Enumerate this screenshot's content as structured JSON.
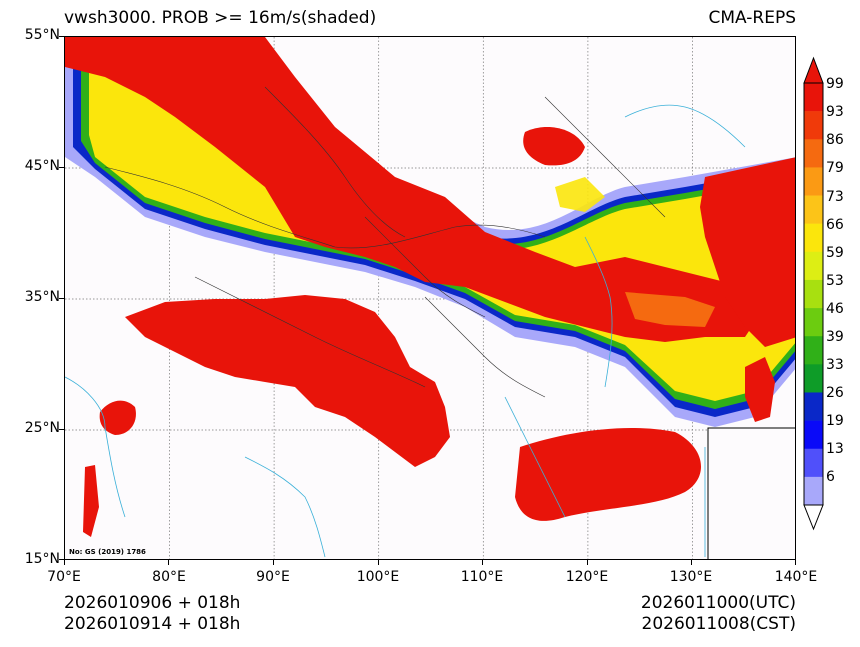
{
  "header": {
    "left_title": "vwsh3000. PROB >= 16m/s(shaded)",
    "right_title": "CMA-REPS"
  },
  "map": {
    "note": "No: GS (2019) 1786",
    "lat_labels": [
      "55°N",
      "45°N",
      "35°N",
      "25°N",
      "15°N"
    ],
    "lon_labels": [
      "70°E",
      "80°E",
      "90°E",
      "100°E",
      "110°E",
      "120°E",
      "130°E",
      "140°E"
    ]
  },
  "colorbar": {
    "labels": [
      "99",
      "93",
      "86",
      "79",
      "73",
      "66",
      "59",
      "53",
      "46",
      "39",
      "33",
      "26",
      "19",
      "13",
      "6"
    ],
    "colors": [
      "#e8140a",
      "#f03a0a",
      "#f56a10",
      "#fb9a14",
      "#fcc418",
      "#fbe60c",
      "#ddee14",
      "#a8e010",
      "#6ccc10",
      "#30b018",
      "#0e9c28",
      "#0a28c8",
      "#0a0af8",
      "#5050fa",
      "#a8a8fa"
    ],
    "top_arrow_color": "#e8140a",
    "bottom_arrow_color": "#ffffff"
  },
  "footer": {
    "init_utc": "2026010906  +  018h",
    "init_cst": "2026010914  +  018h",
    "valid_utc": "2026011000(UTC)",
    "valid_cst": "2026011008(CST)"
  }
}
